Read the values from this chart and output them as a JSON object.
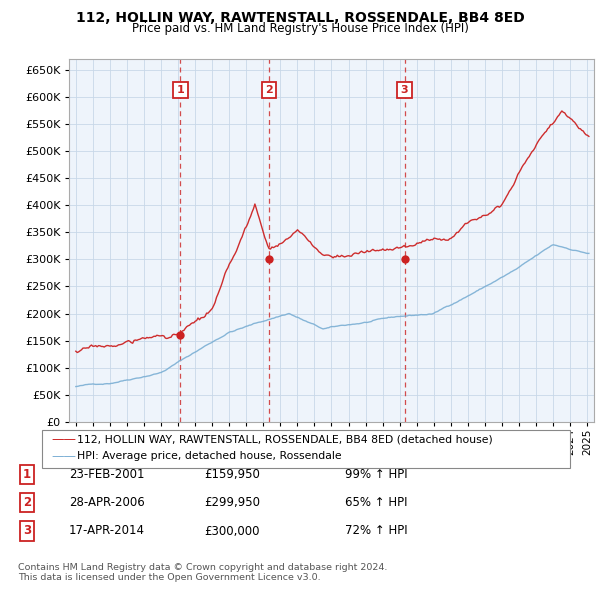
{
  "title": "112, HOLLIN WAY, RAWTENSTALL, ROSSENDALE, BB4 8ED",
  "subtitle": "Price paid vs. HM Land Registry's House Price Index (HPI)",
  "ylim": [
    0,
    670000
  ],
  "yticks": [
    0,
    50000,
    100000,
    150000,
    200000,
    250000,
    300000,
    350000,
    400000,
    450000,
    500000,
    550000,
    600000,
    650000
  ],
  "xlim_start": 1994.6,
  "xlim_end": 2025.4,
  "sale_dates": [
    2001.14,
    2006.32,
    2014.29
  ],
  "sale_prices": [
    159950,
    299950,
    300000
  ],
  "sale_labels": [
    "1",
    "2",
    "3"
  ],
  "legend_line1": "112, HOLLIN WAY, RAWTENSTALL, ROSSENDALE, BB4 8ED (detached house)",
  "legend_line2": "HPI: Average price, detached house, Rossendale",
  "table_data": [
    [
      "1",
      "23-FEB-2001",
      "£159,950",
      "99% ↑ HPI"
    ],
    [
      "2",
      "28-APR-2006",
      "£299,950",
      "65% ↑ HPI"
    ],
    [
      "3",
      "17-APR-2014",
      "£300,000",
      "72% ↑ HPI"
    ]
  ],
  "footer": "Contains HM Land Registry data © Crown copyright and database right 2024.\nThis data is licensed under the Open Government Licence v3.0.",
  "hpi_color": "#7bafd4",
  "price_color": "#cc2222",
  "vline_color": "#cc2222",
  "bg_color": "#ffffff",
  "grid_color": "#c8d8e8",
  "chart_bg": "#eef4fb"
}
